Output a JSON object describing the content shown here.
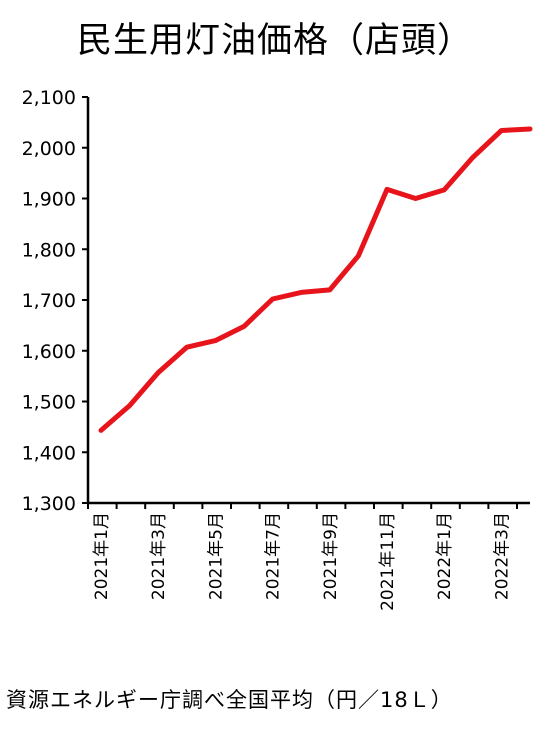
{
  "chart_data": {
    "type": "line",
    "title": "民生用灯油価格（店頭）",
    "source": "資源エネルギー庁調べ全国平均（円／18Ｌ）",
    "ylim": [
      1300,
      2100
    ],
    "yticks": [
      "1,300",
      "1,400",
      "1,500",
      "1,600",
      "1,700",
      "1,800",
      "1,900",
      "2,000",
      "2,100"
    ],
    "x_labels": [
      "2021年1月",
      "2021年3月",
      "2021年5月",
      "2021年7月",
      "2021年9月",
      "2021年11月",
      "2022年1月",
      "2022年3月"
    ],
    "grid": false,
    "legend": "none",
    "series": [
      {
        "color": "#e8141b",
        "values": [
          1443,
          1492,
          1557,
          1607,
          1620,
          1648,
          1702,
          1715,
          1720,
          1787,
          1918,
          1900,
          1917,
          1981,
          2034,
          2037
        ]
      }
    ]
  }
}
